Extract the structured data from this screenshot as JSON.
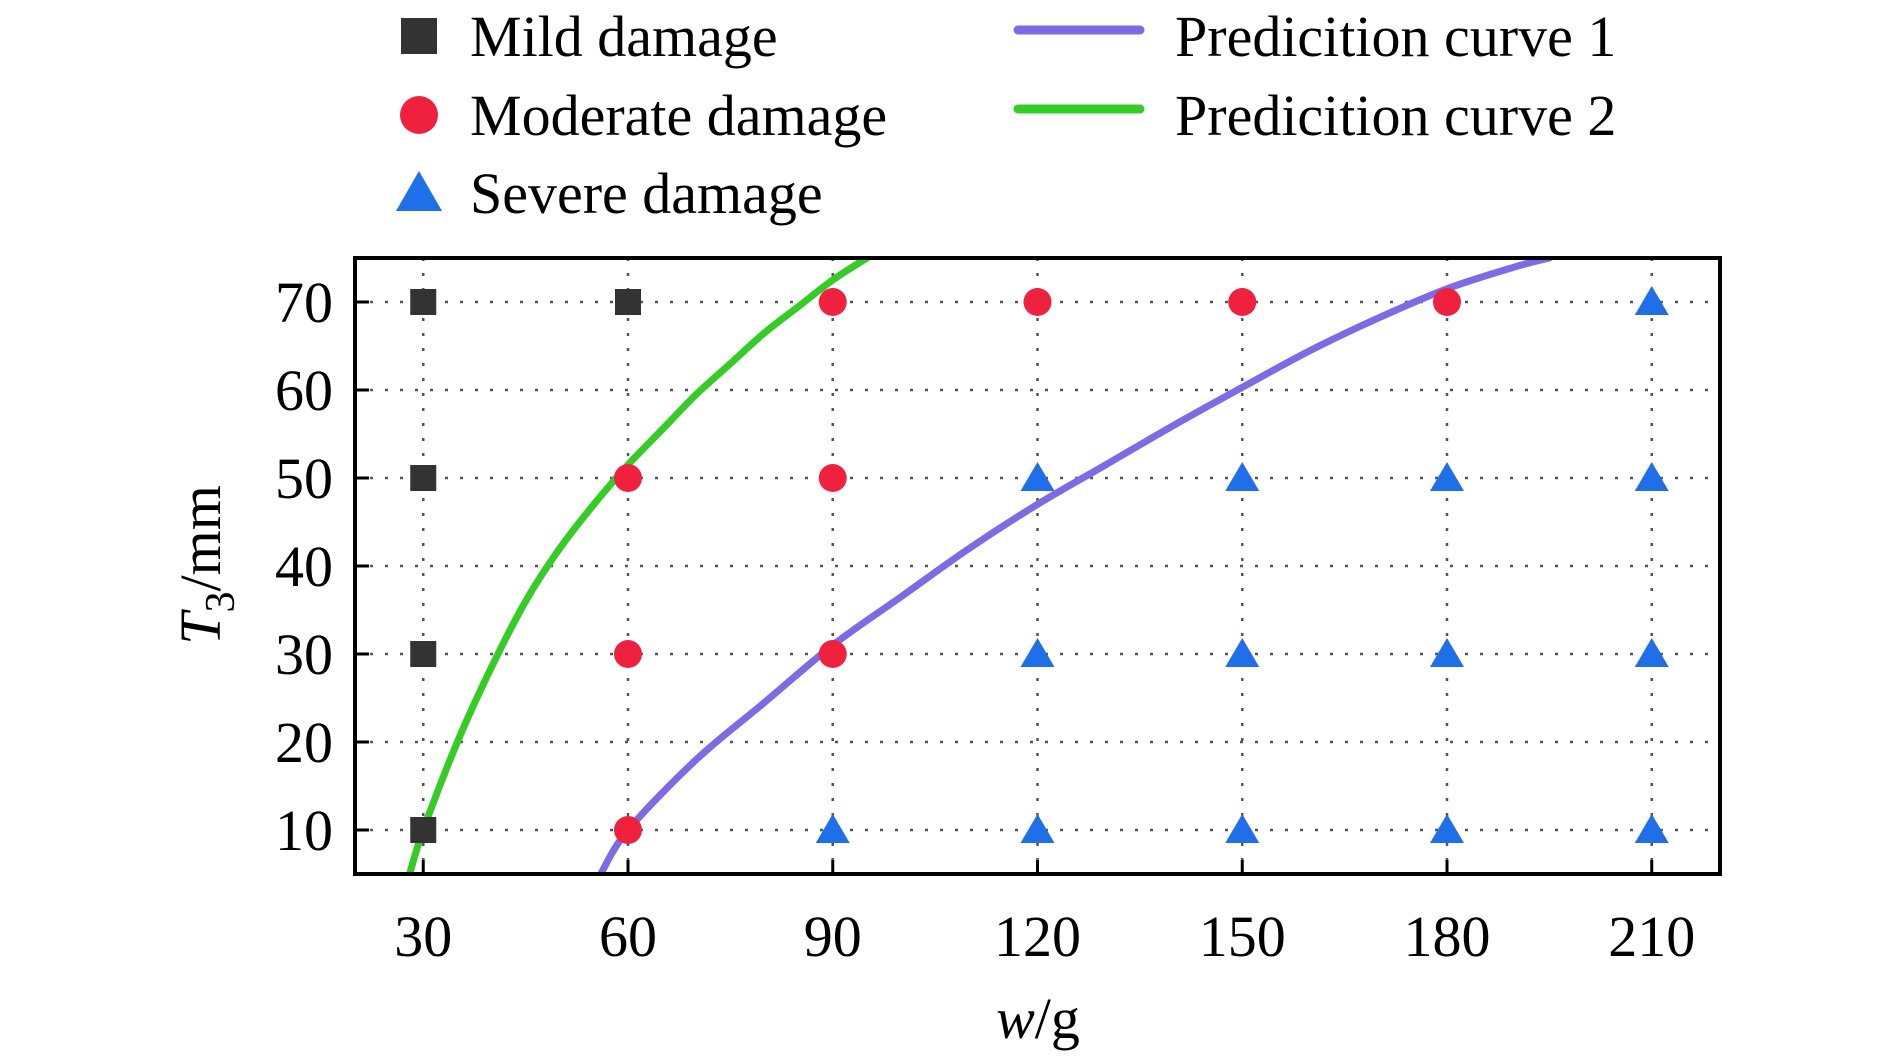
{
  "chart_data": {
    "type": "scatter",
    "xlabel": "w/g",
    "xlabel_parts": {
      "var": "w",
      "unit": "/g"
    },
    "ylabel": "T3/mm",
    "ylabel_parts": {
      "var": "T",
      "sub": "3",
      "unit": "/mm"
    },
    "xlim": [
      20,
      220
    ],
    "ylim": [
      5,
      75
    ],
    "xticks": [
      30,
      60,
      90,
      120,
      150,
      180,
      210
    ],
    "yticks": [
      10,
      20,
      30,
      40,
      50,
      60,
      70
    ],
    "grid": true,
    "legend_position": "top",
    "series": [
      {
        "name": "Mild damage",
        "marker": "square",
        "color": "#333333",
        "points": [
          [
            30,
            70
          ],
          [
            60,
            70
          ],
          [
            30,
            50
          ],
          [
            30,
            30
          ],
          [
            30,
            10
          ]
        ]
      },
      {
        "name": "Moderate damage",
        "marker": "circle",
        "color": "#f0213f",
        "points": [
          [
            90,
            70
          ],
          [
            120,
            70
          ],
          [
            150,
            70
          ],
          [
            180,
            70
          ],
          [
            60,
            50
          ],
          [
            90,
            50
          ],
          [
            60,
            30
          ],
          [
            90,
            30
          ],
          [
            60,
            10
          ]
        ]
      },
      {
        "name": "Severe damage",
        "marker": "triangle",
        "color": "#1f6fe8",
        "points": [
          [
            210,
            70
          ],
          [
            120,
            50
          ],
          [
            150,
            50
          ],
          [
            180,
            50
          ],
          [
            210,
            50
          ],
          [
            120,
            30
          ],
          [
            150,
            30
          ],
          [
            180,
            30
          ],
          [
            210,
            30
          ],
          [
            90,
            10
          ],
          [
            120,
            10
          ],
          [
            150,
            10
          ],
          [
            180,
            10
          ],
          [
            210,
            10
          ]
        ]
      }
    ],
    "curves": [
      {
        "name": "Predicition curve 1",
        "color": "#7f6ae6",
        "points": [
          [
            56,
            5
          ],
          [
            60,
            10
          ],
          [
            70,
            18
          ],
          [
            80,
            24.5
          ],
          [
            90,
            31
          ],
          [
            100,
            36.5
          ],
          [
            110,
            42
          ],
          [
            120,
            47
          ],
          [
            130,
            51.5
          ],
          [
            140,
            56
          ],
          [
            150,
            60.3
          ],
          [
            160,
            64.5
          ],
          [
            170,
            68.2
          ],
          [
            180,
            71.5
          ],
          [
            190,
            74
          ],
          [
            195,
            75
          ]
        ]
      },
      {
        "name": "Predicition curve 2",
        "color": "#35cc26",
        "points": [
          [
            28,
            5
          ],
          [
            30,
            10
          ],
          [
            35,
            20
          ],
          [
            40,
            28.5
          ],
          [
            45,
            36
          ],
          [
            50,
            42
          ],
          [
            55,
            47
          ],
          [
            60,
            51.5
          ],
          [
            65,
            55.5
          ],
          [
            70,
            59.5
          ],
          [
            75,
            63
          ],
          [
            80,
            66.5
          ],
          [
            85,
            69.5
          ],
          [
            90,
            72.5
          ],
          [
            95,
            75
          ]
        ]
      }
    ]
  }
}
